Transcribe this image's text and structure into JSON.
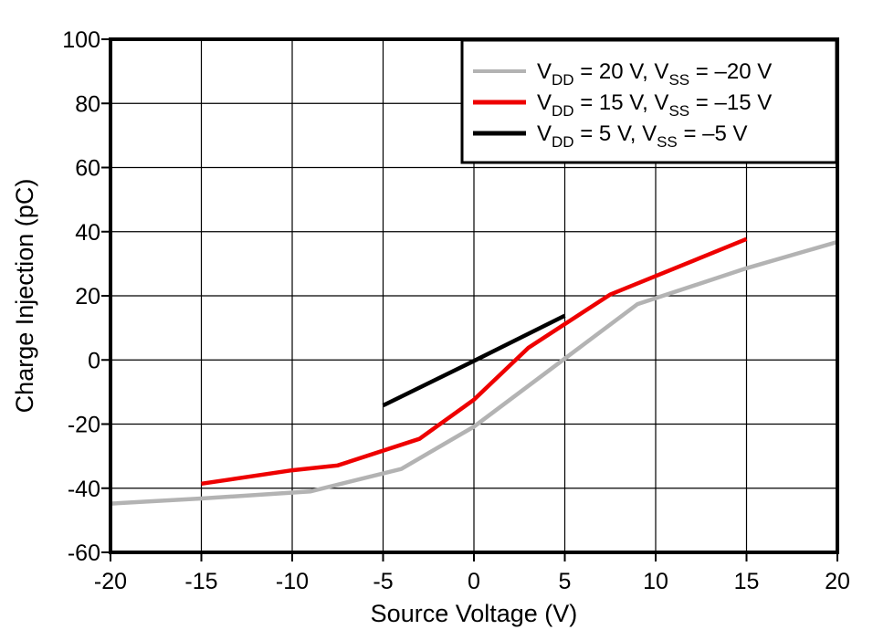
{
  "figure": {
    "background": "#ffffff",
    "frame_color": "#000000",
    "grid_color": "#000000",
    "tick_color": "#000000"
  },
  "chart_data": {
    "type": "line",
    "title": "",
    "xlabel": "Source Voltage (V)",
    "ylabel": "Charge Injection (pC)",
    "xlim": [
      -20,
      20
    ],
    "ylim": [
      -60,
      100
    ],
    "xticks": [
      -20,
      -15,
      -10,
      -5,
      0,
      5,
      10,
      15,
      20
    ],
    "yticks": [
      -60,
      -40,
      -20,
      0,
      20,
      40,
      60,
      80,
      100
    ],
    "grid": true,
    "legend": {
      "position": "top-right",
      "border_color": "#000000",
      "fill": "#ffffff"
    },
    "series": [
      {
        "name": "vdd-20v",
        "label": "V_{DD} = 20 V, V_{SS} = –20 V",
        "color": "#b3b3b3",
        "width": 4.5,
        "points": [
          [
            -20,
            -44.8
          ],
          [
            -15,
            -43.2
          ],
          [
            -9,
            -41
          ],
          [
            -4,
            -34
          ],
          [
            0,
            -20.8
          ],
          [
            9,
            17.4
          ],
          [
            15,
            28.6
          ],
          [
            20,
            36.8
          ]
        ]
      },
      {
        "name": "vdd-15v",
        "label": "V_{DD} = 15 V, V_{SS} = –15 V",
        "color": "#ee0000",
        "width": 4.5,
        "points": [
          [
            -15,
            -38.6
          ],
          [
            -10,
            -34.4
          ],
          [
            -7.5,
            -32.9
          ],
          [
            -3,
            -24.6
          ],
          [
            0,
            -12.4
          ],
          [
            3,
            3.8
          ],
          [
            7.5,
            20.4
          ],
          [
            15,
            37.7
          ]
        ]
      },
      {
        "name": "vdd-5v",
        "label": "V_{DD} = 5 V, V_{SS} = –5 V",
        "color": "#000000",
        "width": 4.5,
        "points": [
          [
            -5,
            -14.2
          ],
          [
            0,
            -0.3
          ],
          [
            5,
            13.8
          ]
        ]
      }
    ]
  }
}
